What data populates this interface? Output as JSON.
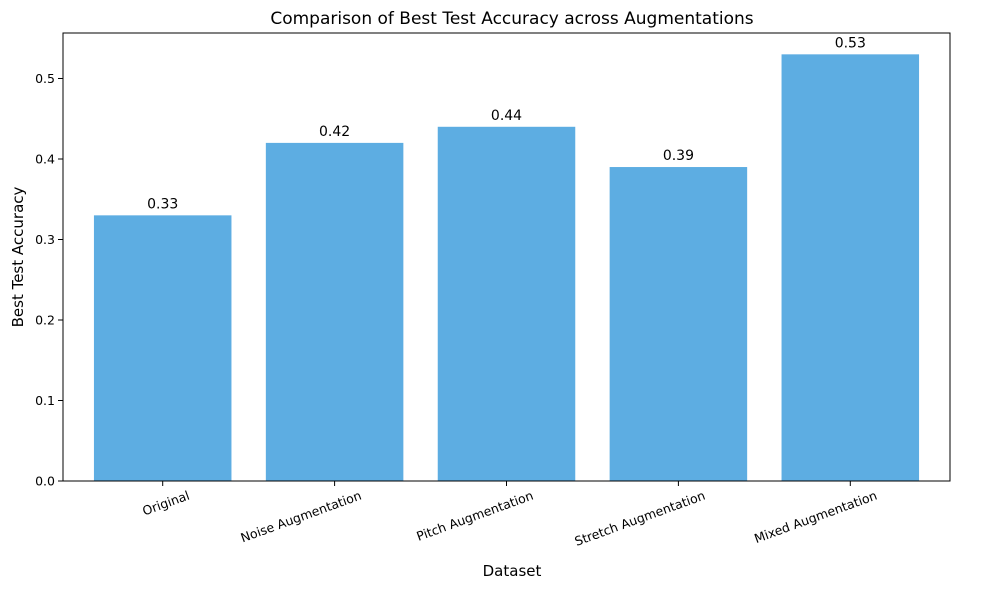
{
  "chart_data": {
    "type": "bar",
    "title": "Comparison of Best Test Accuracy across Augmentations",
    "xlabel": "Dataset",
    "ylabel": "Best Test Accuracy",
    "categories": [
      "Original",
      "Noise Augmentation",
      "Pitch Augmentation",
      "Stretch Augmentation",
      "Mixed Augmentation"
    ],
    "values": [
      0.33,
      0.42,
      0.44,
      0.39,
      0.53
    ],
    "data_labels": [
      "0.33",
      "0.42",
      "0.44",
      "0.39",
      "0.53"
    ],
    "ylim": [
      0,
      0.5565
    ],
    "yticks": [
      0.0,
      0.1,
      0.2,
      0.3,
      0.4,
      0.5
    ],
    "ytick_labels": [
      "0.0",
      "0.1",
      "0.2",
      "0.3",
      "0.4",
      "0.5"
    ],
    "bar_color": "#5DADE2",
    "grid": false,
    "legend": "none"
  }
}
